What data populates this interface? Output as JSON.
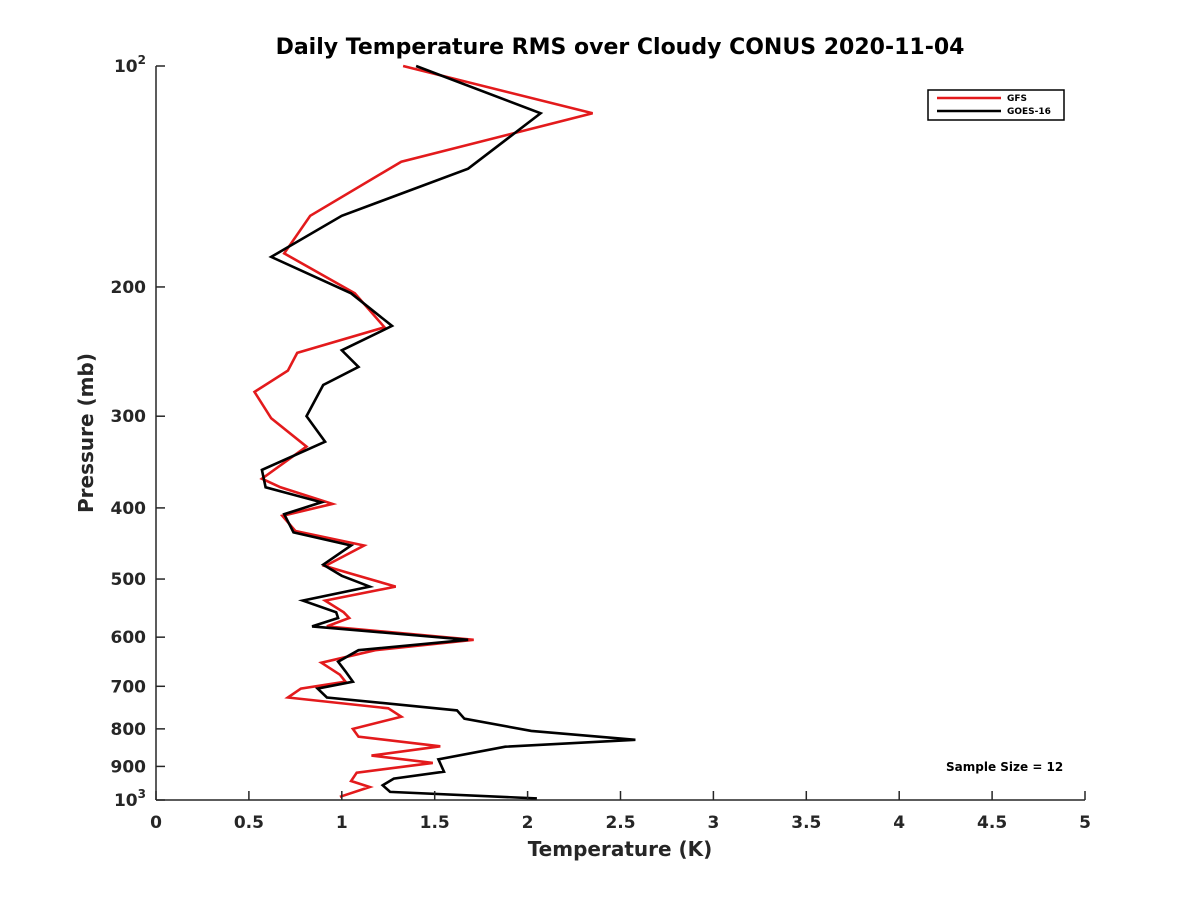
{
  "chart_data": {
    "type": "line",
    "title": "Daily Temperature RMS over Cloudy CONUS 2020-11-04",
    "xlabel": "Temperature (K)",
    "ylabel": "Pressure (mb)",
    "xlim": [
      0,
      5
    ],
    "ylim": [
      100,
      1000
    ],
    "y_scale": "log",
    "y_reversed": true,
    "grid": false,
    "legend_position": "top-right",
    "x_ticks": [
      "0",
      "0.5",
      "1",
      "1.5",
      "2",
      "2.5",
      "3",
      "3.5",
      "4",
      "4.5",
      "5"
    ],
    "x_tick_values": [
      0,
      0.5,
      1,
      1.5,
      2,
      2.5,
      3,
      3.5,
      4,
      4.5,
      5
    ],
    "y_ticks": [
      {
        "value": 100,
        "base": "10",
        "exp": "2"
      },
      {
        "value": 200,
        "text": "200"
      },
      {
        "value": 300,
        "text": "300"
      },
      {
        "value": 400,
        "text": "400"
      },
      {
        "value": 500,
        "text": "500"
      },
      {
        "value": 600,
        "text": "600"
      },
      {
        "value": 700,
        "text": "700"
      },
      {
        "value": 800,
        "text": "800"
      },
      {
        "value": 900,
        "text": "900"
      },
      {
        "value": 1000,
        "base": "10",
        "exp": "3"
      }
    ],
    "annotation": "Sample Size = 12",
    "series": [
      {
        "name": "GFS",
        "color": "#e31a1c",
        "points": [
          [
            1.33,
            100
          ],
          [
            2.35,
            116
          ],
          [
            1.32,
            135
          ],
          [
            0.83,
            160
          ],
          [
            0.69,
            180
          ],
          [
            1.07,
            204
          ],
          [
            1.23,
            227
          ],
          [
            0.76,
            246
          ],
          [
            0.71,
            260
          ],
          [
            0.53,
            278
          ],
          [
            0.62,
            302
          ],
          [
            0.81,
            330
          ],
          [
            0.57,
            365
          ],
          [
            0.67,
            375
          ],
          [
            0.95,
            395
          ],
          [
            0.68,
            410
          ],
          [
            0.75,
            430
          ],
          [
            1.12,
            450
          ],
          [
            0.91,
            480
          ],
          [
            1.03,
            490
          ],
          [
            1.29,
            512
          ],
          [
            0.91,
            535
          ],
          [
            1.01,
            555
          ],
          [
            1.04,
            565
          ],
          [
            0.92,
            580
          ],
          [
            1.71,
            605
          ],
          [
            1.18,
            625
          ],
          [
            0.89,
            650
          ],
          [
            0.99,
            675
          ],
          [
            1.02,
            690
          ],
          [
            0.78,
            705
          ],
          [
            0.71,
            725
          ],
          [
            1.25,
            750
          ],
          [
            1.32,
            770
          ],
          [
            1.06,
            800
          ],
          [
            1.09,
            820
          ],
          [
            1.53,
            845
          ],
          [
            1.16,
            870
          ],
          [
            1.49,
            890
          ],
          [
            1.08,
            918
          ],
          [
            1.05,
            942
          ],
          [
            1.15,
            960
          ],
          [
            0.99,
            990
          ]
        ]
      },
      {
        "name": "GOES-16",
        "color": "#000000",
        "points": [
          [
            1.4,
            100
          ],
          [
            2.07,
            116
          ],
          [
            1.68,
            138
          ],
          [
            1.0,
            160
          ],
          [
            0.62,
            182
          ],
          [
            1.05,
            204
          ],
          [
            1.27,
            226
          ],
          [
            1.0,
            244
          ],
          [
            1.09,
            257
          ],
          [
            0.9,
            272
          ],
          [
            0.81,
            300
          ],
          [
            0.91,
            325
          ],
          [
            0.57,
            355
          ],
          [
            0.59,
            375
          ],
          [
            0.89,
            393
          ],
          [
            0.69,
            408
          ],
          [
            0.74,
            432
          ],
          [
            1.05,
            450
          ],
          [
            0.9,
            478
          ],
          [
            1.0,
            495
          ],
          [
            1.15,
            512
          ],
          [
            0.79,
            535
          ],
          [
            0.97,
            555
          ],
          [
            0.98,
            565
          ],
          [
            0.84,
            580
          ],
          [
            1.68,
            605
          ],
          [
            1.09,
            625
          ],
          [
            0.98,
            648
          ],
          [
            1.02,
            668
          ],
          [
            1.06,
            690
          ],
          [
            0.87,
            705
          ],
          [
            0.92,
            725
          ],
          [
            1.62,
            755
          ],
          [
            1.66,
            775
          ],
          [
            2.02,
            805
          ],
          [
            2.58,
            828
          ],
          [
            1.88,
            846
          ],
          [
            1.52,
            880
          ],
          [
            1.55,
            915
          ],
          [
            1.28,
            935
          ],
          [
            1.22,
            955
          ],
          [
            1.26,
            975
          ],
          [
            2.05,
            995
          ]
        ]
      }
    ]
  }
}
